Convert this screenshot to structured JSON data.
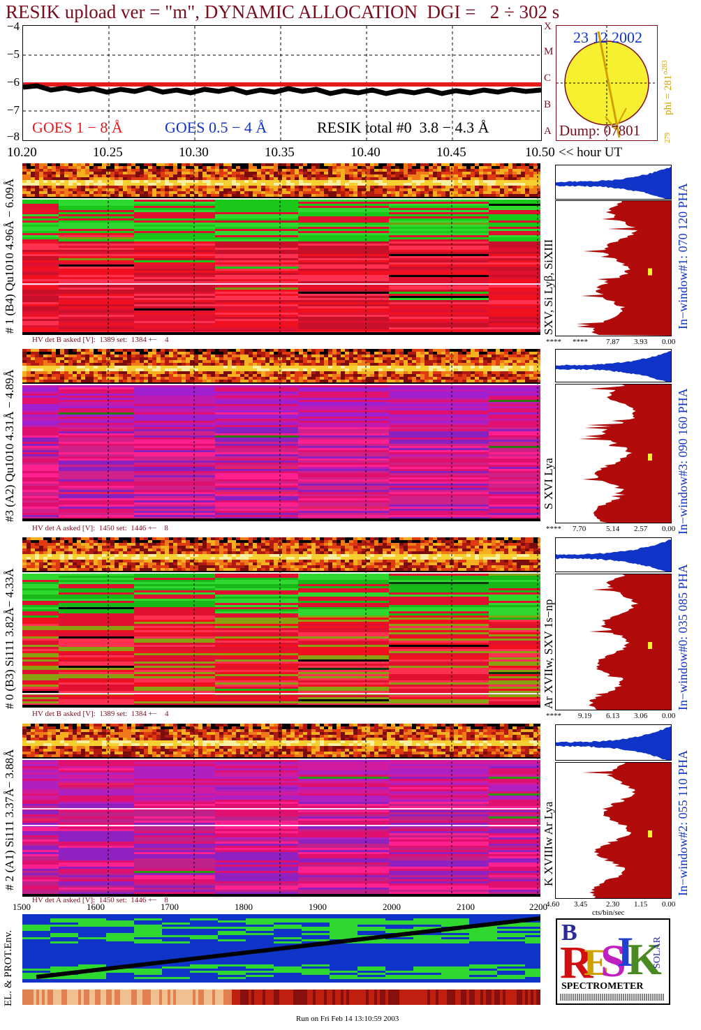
{
  "header": {
    "title": "RESIK upload ver = \"m\", DYNAMIC ALLOCATION  DGI =   2 ÷ 302 s"
  },
  "goes_plot": {
    "y_ticks": [
      "−4",
      "−5",
      "−6",
      "−7",
      "−8"
    ],
    "x_ticks": [
      "10.20",
      "10.25",
      "10.30",
      "10.35",
      "10.40",
      "10.45",
      "10.50"
    ],
    "x_unit_label": "<< hour UT",
    "class_letters": [
      "A",
      "B",
      "C",
      "M",
      "X"
    ],
    "legend": {
      "goes_long": "GOES 1 − 8 Å",
      "goes_short": "GOES 0.5 − 4 Å",
      "resik": "RESIK total #0  3.8 − 4.3 Å"
    },
    "colors": {
      "goes_long": "#e41a1c",
      "goes_short": "#1034c8",
      "resik": "#000000"
    }
  },
  "sun_panel": {
    "date": "23 12 2002",
    "dump": "Dump: 07801",
    "phi": "phi = 281°",
    "phi_sup": "283",
    "phi_low": "279",
    "colors": {
      "disk": "#f7f030",
      "frame": "#7a0c1e",
      "date": "#1034c8"
    }
  },
  "channels": [
    {
      "id": "ch1",
      "label": "# 1 (B4) Qu1010 4.96Å − 6.09Å",
      "lines": "SXV, Si Lyβ, SiXIII",
      "hv": "HV det B asked [V]:  1389 set:  1384 +−    4",
      "pha": "In−window#1:  070 120 PHA",
      "scale": [
        "****",
        "****",
        "7.87",
        "3.93",
        "0.00"
      ]
    },
    {
      "id": "ch3",
      "label": "#3 (A2) Qu1010  4.31Å − 4.89Å",
      "lines": "S XVI Lya",
      "hv": "HV det A asked [V]:  1450 set:  1446 +−    8",
      "pha": "In−window#3:  090 160 PHA",
      "scale": [
        "****",
        "7.70",
        "5.14",
        "2.57",
        "0.00"
      ]
    },
    {
      "id": "ch0",
      "label": "# 0 (B3) Si111  3.82Å− 4.33Å",
      "lines": "Ar XVIIw,  SXV 1s−np",
      "hv": "HV det B asked [V]:  1389 set:  1384 +−    4",
      "pha": "In−window#0:  035 085 PHA",
      "scale": [
        "****",
        "9.19",
        "6.13",
        "3.06",
        "0.00"
      ]
    },
    {
      "id": "ch2",
      "label": "# 2 (A1) Si111  3.37Å− 3.88Å",
      "lines": "K XVIIIw  Ar Lya",
      "hv": "HV det A asked [V]:  1450 set:  1446 +−    8",
      "pha": "In−window#2:  055 110 PHA",
      "scale": [
        "4.60",
        "3.45",
        "2.30",
        "1.15",
        "0.00"
      ]
    }
  ],
  "bottom": {
    "x_ticks": [
      "1500",
      "1600",
      "1700",
      "1800",
      "1900",
      "2000",
      "2100",
      "2200"
    ],
    "y_label": "EL. & PROT.Env.",
    "cts_label": "cts/bin/sec",
    "run_info": "Run on Fri Feb 14 13:10:59 2003"
  },
  "logo": {
    "letters": [
      "B",
      "R",
      "E",
      "S",
      "I",
      "K",
      "SOLAR"
    ],
    "sub": "SPECTROMETER",
    "colors": {
      "b": "#2a2a9a",
      "r": "#d01010",
      "e": "#d0a000",
      "s": "#c020c0",
      "i": "#2040d0",
      "k": "#4a8a20"
    }
  }
}
